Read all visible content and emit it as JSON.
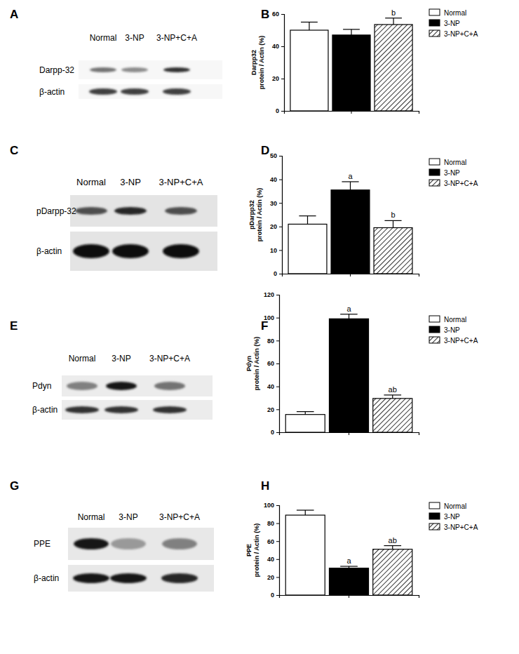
{
  "chart_data": [
    {
      "type": "bar",
      "title": "B",
      "categories": [
        null
      ],
      "ylabel": [
        "Darpp32",
        "protein / Actin (%)"
      ],
      "ylim": [
        0,
        60
      ],
      "yticks": [
        0,
        20,
        40,
        60
      ],
      "grid": false,
      "legend": "right",
      "series": [
        {
          "name": "Normal",
          "color": "#ffffff",
          "values": [
            50
          ],
          "errors": [
            5
          ]
        },
        {
          "name": "3-NP",
          "color": "#000000",
          "values": [
            47
          ],
          "errors": [
            3.5
          ]
        },
        {
          "name": "3-NP+C+A",
          "color": "#000000",
          "marker": "hatch",
          "values": [
            53.5
          ],
          "errors": [
            4
          ],
          "annotation": "b"
        }
      ]
    },
    {
      "type": "bar",
      "title": "D",
      "categories": [
        null
      ],
      "ylabel": [
        "pDarpp32",
        "protein / Actin (%)"
      ],
      "ylim": [
        0,
        50
      ],
      "yticks": [
        0,
        10,
        20,
        30,
        40,
        50
      ],
      "grid": false,
      "legend": "right",
      "series": [
        {
          "name": "Normal",
          "color": "#ffffff",
          "values": [
            21
          ],
          "errors": [
            3.5
          ]
        },
        {
          "name": "3-NP",
          "color": "#000000",
          "values": [
            35.5
          ],
          "errors": [
            3.5
          ],
          "annotation": "a"
        },
        {
          "name": "3-NP+C+A",
          "color": "#000000",
          "marker": "hatch",
          "values": [
            19.5
          ],
          "errors": [
            3
          ],
          "annotation": "b"
        }
      ]
    },
    {
      "type": "bar",
      "title": "F",
      "categories": [
        null
      ],
      "ylabel": [
        "Pdyn",
        "protein / Actin (%)"
      ],
      "ylim": [
        0,
        120
      ],
      "yticks": [
        0,
        20,
        40,
        60,
        80,
        100,
        120
      ],
      "grid": false,
      "legend": "right",
      "series": [
        {
          "name": "Normal",
          "color": "#ffffff",
          "values": [
            15.5
          ],
          "errors": [
            2.5
          ]
        },
        {
          "name": "3-NP",
          "color": "#000000",
          "values": [
            99
          ],
          "errors": [
            4
          ],
          "annotation": "a"
        },
        {
          "name": "3-NP+C+A",
          "color": "#000000",
          "marker": "hatch",
          "values": [
            29.5
          ],
          "errors": [
            3
          ],
          "annotation": "ab"
        }
      ]
    },
    {
      "type": "bar",
      "title": "H",
      "categories": [
        null
      ],
      "ylabel": [
        "PPE",
        "protein / Actin (%)"
      ],
      "ylim": [
        0,
        100
      ],
      "yticks": [
        0,
        20,
        40,
        60,
        80,
        100
      ],
      "grid": false,
      "legend": "right",
      "series": [
        {
          "name": "Normal",
          "color": "#ffffff",
          "values": [
            89
          ],
          "errors": [
            5.5
          ]
        },
        {
          "name": "3-NP",
          "color": "#000000",
          "values": [
            30
          ],
          "errors": [
            2
          ],
          "annotation": "a"
        },
        {
          "name": "3-NP+C+A",
          "color": "#000000",
          "marker": "hatch",
          "values": [
            51
          ],
          "errors": [
            4
          ],
          "annotation": "ab"
        }
      ]
    }
  ],
  "blots": [
    {
      "title": "A",
      "lanes": [
        "Normal",
        "3-NP",
        "3-NP+C+A"
      ],
      "rows": [
        {
          "label": "Darpp-32",
          "band_intensity": [
            0.55,
            0.45,
            0.8
          ]
        },
        {
          "label": "β-actin",
          "band_intensity": [
            0.75,
            0.75,
            0.75
          ]
        }
      ]
    },
    {
      "title": "C",
      "lanes": [
        "Normal",
        "3-NP",
        "3-NP+C+A"
      ],
      "rows": [
        {
          "label": "pDarpp-32",
          "band_intensity": [
            0.7,
            0.85,
            0.7
          ]
        },
        {
          "label": "β-actin",
          "band_intensity": [
            0.95,
            0.95,
            0.95
          ]
        }
      ]
    },
    {
      "title": "E",
      "lanes": [
        "Normal",
        "3-NP",
        "3-NP+C+A"
      ],
      "rows": [
        {
          "label": "Pdyn",
          "band_intensity": [
            0.5,
            0.9,
            0.55
          ]
        },
        {
          "label": "β-actin",
          "band_intensity": [
            0.8,
            0.8,
            0.8
          ]
        }
      ]
    },
    {
      "title": "G",
      "lanes": [
        "Normal",
        "3-NP",
        "3-NP+C+A"
      ],
      "rows": [
        {
          "label": "PPE",
          "band_intensity": [
            0.9,
            0.4,
            0.5
          ]
        },
        {
          "label": "β-actin",
          "band_intensity": [
            0.9,
            0.9,
            0.85
          ]
        }
      ]
    }
  ]
}
